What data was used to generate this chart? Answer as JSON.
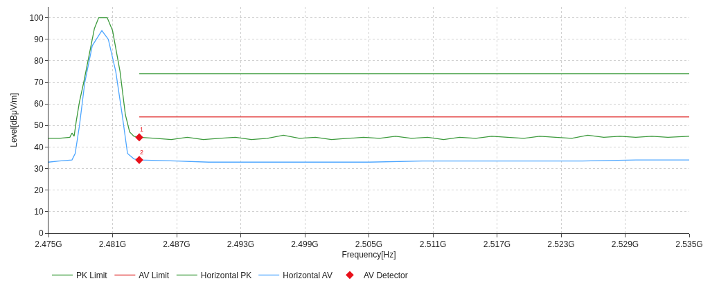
{
  "chart_data": {
    "type": "line",
    "xlabel": "Frequency[Hz]",
    "ylabel": "Level[dBμV/m]",
    "xlim": [
      2.475,
      2.535
    ],
    "ylim": [
      0,
      105
    ],
    "xticks": [
      {
        "value": 2.475,
        "label": "2.475G"
      },
      {
        "value": 2.481,
        "label": "2.481G"
      },
      {
        "value": 2.487,
        "label": "2.487G"
      },
      {
        "value": 2.493,
        "label": "2.493G"
      },
      {
        "value": 2.499,
        "label": "2.499G"
      },
      {
        "value": 2.505,
        "label": "2.505G"
      },
      {
        "value": 2.511,
        "label": "2.511G"
      },
      {
        "value": 2.517,
        "label": "2.517G"
      },
      {
        "value": 2.523,
        "label": "2.523G"
      },
      {
        "value": 2.529,
        "label": "2.529G"
      },
      {
        "value": 2.535,
        "label": "2.535G"
      }
    ],
    "yticks": [
      0,
      10,
      20,
      30,
      40,
      50,
      60,
      70,
      80,
      90,
      100
    ],
    "grid": true,
    "legend": "bottom",
    "line_style": "solid",
    "marker": "none",
    "series": [
      {
        "name": "PK Limit",
        "color": "#3a9a3a",
        "x": [
          2.4835,
          2.535
        ],
        "values": [
          74,
          74
        ]
      },
      {
        "name": "AV Limit",
        "color": "#e03030",
        "x": [
          2.4835,
          2.535
        ],
        "values": [
          54,
          54
        ]
      },
      {
        "name": "Horizontal PK",
        "color": "#3c9a3c",
        "x": [
          2.475,
          2.476,
          2.477,
          2.4772,
          2.4774,
          2.4776,
          2.4779,
          2.4783,
          2.4787,
          2.4793,
          2.4797,
          2.4801,
          2.4805,
          2.481,
          2.4817,
          2.4822,
          2.4826,
          2.483,
          2.4835,
          2.485,
          2.4865,
          2.488,
          2.4895,
          2.491,
          2.4925,
          2.494,
          2.4955,
          2.497,
          2.4985,
          2.5,
          2.5015,
          2.503,
          2.5045,
          2.506,
          2.5075,
          2.509,
          2.5105,
          2.512,
          2.5135,
          2.515,
          2.5165,
          2.518,
          2.5195,
          2.521,
          2.5225,
          2.524,
          2.5255,
          2.527,
          2.5285,
          2.53,
          2.5315,
          2.533,
          2.535
        ],
        "values": [
          44,
          44,
          44.5,
          46.5,
          45,
          52,
          61,
          70,
          80,
          95,
          100,
          100,
          100,
          94,
          75,
          55,
          47,
          45,
          44.5,
          44,
          43.5,
          44.5,
          43.5,
          44,
          44.5,
          43.5,
          44,
          45.5,
          44,
          44.5,
          43.5,
          44,
          44.5,
          44,
          45,
          44,
          44.5,
          43.5,
          44.5,
          44,
          45,
          44.5,
          44,
          45,
          44.5,
          44,
          45.5,
          44.5,
          45,
          44.5,
          45,
          44.5,
          45
        ]
      },
      {
        "name": "Horizontal AV",
        "color": "#4da6ff",
        "x": [
          2.475,
          2.476,
          2.4772,
          2.4775,
          2.4779,
          2.4784,
          2.4791,
          2.48,
          2.4806,
          2.4813,
          2.4819,
          2.4824,
          2.483,
          2.4835,
          2.487,
          2.49,
          2.495,
          2.5,
          2.505,
          2.51,
          2.515,
          2.52,
          2.525,
          2.53,
          2.535
        ],
        "values": [
          33,
          33.5,
          34,
          37,
          50,
          70,
          87,
          94,
          90,
          75,
          55,
          37,
          34.5,
          34,
          33.5,
          33,
          33,
          33,
          33,
          33.5,
          33.5,
          33.5,
          33.5,
          34,
          34
        ]
      },
      {
        "name": "AV Detector",
        "type": "scatter",
        "marker": "diamond",
        "color": "#e8101a",
        "x": [
          2.4835,
          2.4835
        ],
        "values": [
          44.5,
          34
        ]
      }
    ],
    "annotations": [
      {
        "text": "1",
        "x": 2.4835,
        "y": 44.5
      },
      {
        "text": "2",
        "x": 2.4835,
        "y": 34
      }
    ]
  }
}
